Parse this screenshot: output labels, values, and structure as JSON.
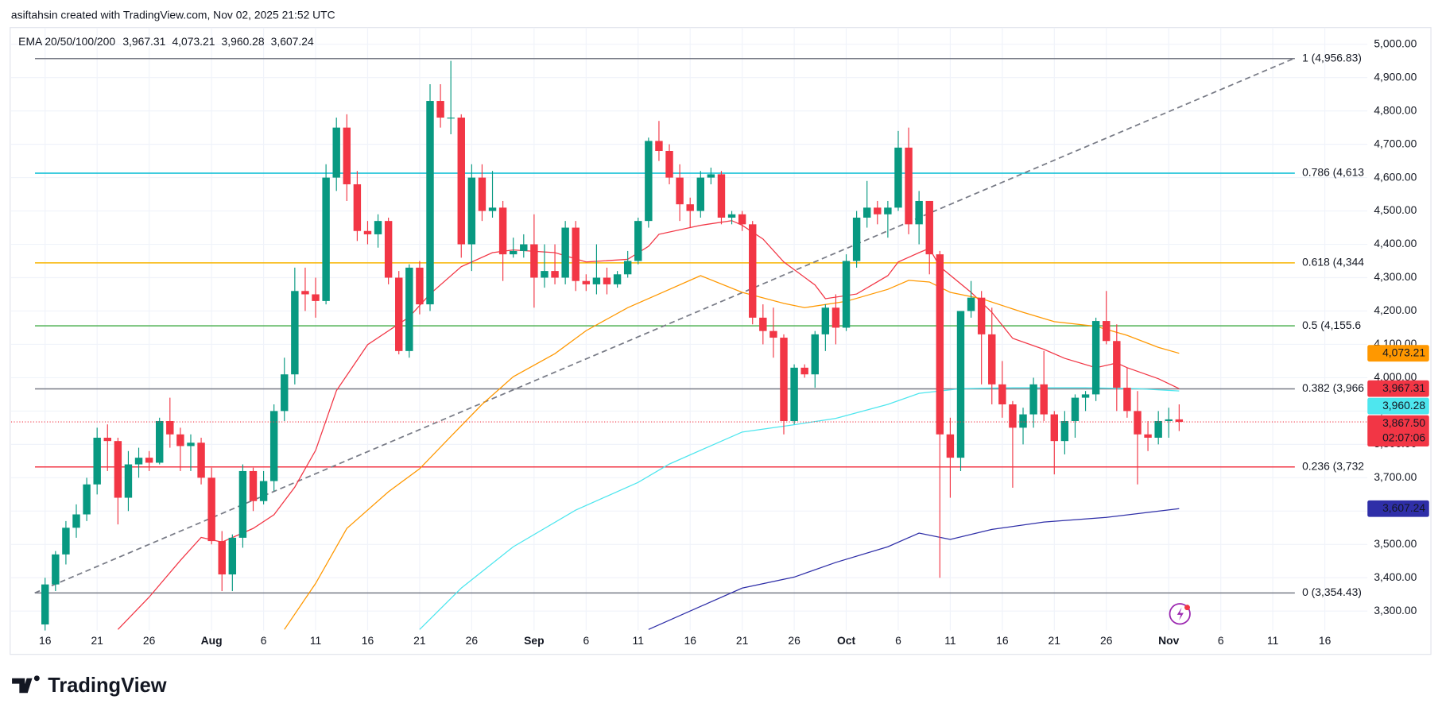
{
  "header": {
    "attribution": "asiftahsin created with TradingView.com, Nov 02, 2025 21:52 UTC",
    "footer_logo": "TradingView"
  },
  "chart_data": {
    "type": "candlestick",
    "indicator": "EMA 20/50/100/200",
    "x": [
      0,
      1,
      2,
      3,
      4,
      5,
      6,
      7,
      8,
      9,
      10,
      11,
      12,
      13,
      14,
      15,
      16,
      17,
      18,
      19,
      20,
      21,
      22,
      23,
      24,
      25,
      26,
      27,
      28,
      29,
      30,
      31,
      32,
      33,
      34,
      35,
      36,
      37,
      38,
      39,
      40,
      41,
      42,
      43,
      44,
      45,
      46,
      47,
      48,
      49,
      50,
      51,
      52,
      53,
      54,
      55,
      56,
      57,
      58,
      59,
      60,
      61,
      62,
      63,
      64,
      65,
      66,
      67,
      68,
      69,
      70,
      71,
      72,
      73,
      74,
      75,
      76,
      77,
      78,
      79,
      80,
      81,
      82,
      83,
      84,
      85,
      86,
      87,
      88,
      89,
      90,
      91,
      92,
      93,
      94,
      95,
      96,
      97,
      98,
      99,
      100,
      101,
      102,
      103,
      104,
      105,
      106,
      107,
      108,
      109
    ],
    "open": [
      3260,
      3380,
      3470,
      3550,
      3590,
      3680,
      3820,
      3810,
      3640,
      3740,
      3760,
      3745,
      3870,
      3830,
      3795,
      3805,
      3700,
      3510,
      3410,
      3520,
      3720,
      3630,
      3690,
      3900,
      4010,
      4260,
      4250,
      4230,
      4600,
      4750,
      4580,
      4440,
      4430,
      4470,
      4300,
      4080,
      4330,
      4220,
      4830,
      4780,
      4780,
      4400,
      4600,
      4500,
      4510,
      4370,
      4380,
      4400,
      4300,
      4320,
      4300,
      4450,
      4290,
      4280,
      4300,
      4280,
      4310,
      4350,
      4470,
      4710,
      4680,
      4600,
      4520,
      4500,
      4600,
      4610,
      4480,
      4490,
      4460,
      4180,
      4140,
      4120,
      3870,
      4030,
      4010,
      4130,
      4210,
      4150,
      4350,
      4480,
      4510,
      4490,
      4510,
      4690,
      4460,
      4530,
      4370,
      3830,
      3760,
      4200,
      4240,
      4130,
      3980,
      3920,
      3850,
      3890,
      3980,
      3890,
      3810,
      3870,
      3940,
      3950,
      4170,
      4110,
      3970,
      3900,
      3830,
      3820,
      3870,
      3875
    ],
    "high": [
      3400,
      3480,
      3570,
      3620,
      3700,
      3850,
      3860,
      3820,
      3780,
      3790,
      3780,
      3880,
      3940,
      3850,
      3830,
      3820,
      3730,
      3540,
      3530,
      3740,
      3730,
      3720,
      3920,
      4060,
      4330,
      4330,
      4300,
      4640,
      4780,
      4790,
      4620,
      4470,
      4490,
      4480,
      4320,
      4340,
      4350,
      4880,
      4880,
      4950,
      4790,
      4640,
      4640,
      4620,
      4530,
      4420,
      4430,
      4490,
      4400,
      4400,
      4470,
      4470,
      4310,
      4400,
      4330,
      4320,
      4380,
      4480,
      4720,
      4770,
      4700,
      4640,
      4540,
      4620,
      4630,
      4620,
      4500,
      4500,
      4470,
      4220,
      4210,
      4130,
      4040,
      4040,
      4140,
      4220,
      4250,
      4370,
      4500,
      4590,
      4530,
      4530,
      4740,
      4750,
      4560,
      4530,
      4380,
      3880,
      4200,
      4290,
      4260,
      4210,
      4050,
      3930,
      3910,
      4000,
      4080,
      3900,
      3900,
      3950,
      3960,
      4180,
      4260,
      4160,
      4030,
      3960,
      3870,
      3900,
      3910,
      3920
    ],
    "low": [
      3230,
      3360,
      3440,
      3520,
      3570,
      3650,
      3720,
      3560,
      3600,
      3700,
      3720,
      3740,
      3790,
      3720,
      3720,
      3680,
      3500,
      3360,
      3360,
      3490,
      3600,
      3620,
      3660,
      3870,
      3980,
      4200,
      4180,
      4220,
      4560,
      4530,
      4410,
      4400,
      4390,
      4280,
      4070,
      4060,
      4190,
      4200,
      4750,
      4730,
      4360,
      4320,
      4470,
      4480,
      4290,
      4360,
      4360,
      4210,
      4270,
      4280,
      4280,
      4260,
      4260,
      4250,
      4250,
      4270,
      4300,
      4340,
      4450,
      4650,
      4580,
      4470,
      4450,
      4480,
      4580,
      4460,
      4460,
      4440,
      4160,
      4100,
      4060,
      3830,
      3860,
      4000,
      3970,
      4080,
      4100,
      4140,
      4330,
      4450,
      4460,
      4420,
      4500,
      4430,
      4400,
      4310,
      3400,
      3640,
      3720,
      4180,
      3980,
      3920,
      3880,
      3670,
      3800,
      3850,
      3870,
      3710,
      3770,
      3820,
      3900,
      3930,
      4100,
      3900,
      3880,
      3680,
      3780,
      3800,
      3820,
      3840
    ],
    "close": [
      3380,
      3470,
      3550,
      3590,
      3680,
      3820,
      3810,
      3640,
      3740,
      3760,
      3745,
      3870,
      3830,
      3795,
      3805,
      3700,
      3510,
      3410,
      3520,
      3720,
      3630,
      3690,
      3900,
      4010,
      4260,
      4250,
      4230,
      4600,
      4750,
      4580,
      4440,
      4430,
      4470,
      4300,
      4080,
      4330,
      4220,
      4830,
      4780,
      4780,
      4400,
      4600,
      4500,
      4510,
      4370,
      4380,
      4400,
      4300,
      4320,
      4300,
      4450,
      4290,
      4280,
      4300,
      4280,
      4310,
      4350,
      4470,
      4710,
      4680,
      4600,
      4520,
      4500,
      4600,
      4610,
      4480,
      4490,
      4460,
      4180,
      4140,
      4120,
      3870,
      4030,
      4010,
      4130,
      4210,
      4150,
      4350,
      4480,
      4510,
      4490,
      4510,
      4690,
      4460,
      4530,
      4370,
      3830,
      3760,
      4200,
      4240,
      4130,
      3980,
      3920,
      3850,
      3890,
      3980,
      3890,
      3810,
      3870,
      3940,
      3950,
      4170,
      4110,
      3970,
      3900,
      3830,
      3820,
      3870,
      3875,
      3867.5
    ],
    "up_color": "#089981",
    "down_color": "#f23645",
    "xlim": [
      -3.27,
      127.1
    ],
    "xticks": [
      {
        "value": 0,
        "label": "16"
      },
      {
        "value": 5,
        "label": "21"
      },
      {
        "value": 10,
        "label": "26"
      },
      {
        "value": 16,
        "label": "Aug"
      },
      {
        "value": 21,
        "label": "6"
      },
      {
        "value": 26,
        "label": "11"
      },
      {
        "value": 31,
        "label": "16"
      },
      {
        "value": 36,
        "label": "21"
      },
      {
        "value": 41,
        "label": "26"
      },
      {
        "value": 47,
        "label": "Sep"
      },
      {
        "value": 52,
        "label": "6"
      },
      {
        "value": 57,
        "label": "11"
      },
      {
        "value": 62,
        "label": "16"
      },
      {
        "value": 67,
        "label": "21"
      },
      {
        "value": 72,
        "label": "26"
      },
      {
        "value": 77,
        "label": "Oct"
      },
      {
        "value": 82,
        "label": "6"
      },
      {
        "value": 87,
        "label": "11"
      },
      {
        "value": 92,
        "label": "16"
      },
      {
        "value": 97,
        "label": "21"
      },
      {
        "value": 102,
        "label": "26"
      },
      {
        "value": 108,
        "label": "Nov"
      },
      {
        "value": 113,
        "label": "6"
      },
      {
        "value": 118,
        "label": "11"
      },
      {
        "value": 123,
        "label": "16"
      }
    ],
    "ylim": [
      3242,
      5050
    ],
    "yticks": [
      {
        "value": 3300,
        "label": "3,300.00"
      },
      {
        "value": 3400,
        "label": "3,400.00"
      },
      {
        "value": 3500,
        "label": "3,500.00"
      },
      {
        "value": 3600,
        "label": "3,600.00"
      },
      {
        "value": 3700,
        "label": "3,700.00"
      },
      {
        "value": 3800,
        "label": "3,800.00"
      },
      {
        "value": 3900,
        "label": "3,900.00"
      },
      {
        "value": 4000,
        "label": "4,000.00"
      },
      {
        "value": 4100,
        "label": "4,100.00"
      },
      {
        "value": 4200,
        "label": "4,200.00"
      },
      {
        "value": 4300,
        "label": "4,300.00"
      },
      {
        "value": 4400,
        "label": "4,400.00"
      },
      {
        "value": 4500,
        "label": "4,500.00"
      },
      {
        "value": 4600,
        "label": "4,600.00"
      },
      {
        "value": 4700,
        "label": "4,700.00"
      },
      {
        "value": 4800,
        "label": "4,800.00"
      },
      {
        "value": 4900,
        "label": "4,900.00"
      },
      {
        "value": 5000,
        "label": "5,000.00"
      }
    ],
    "grid": true,
    "series": [
      {
        "color": "#f23645",
        "x": [
          7,
          10,
          13,
          15,
          17,
          20,
          22,
          24,
          26,
          28,
          31,
          35,
          37,
          40,
          43,
          45,
          49,
          52,
          56,
          58,
          59,
          63,
          66,
          67,
          69,
          71,
          74,
          75,
          78,
          81,
          82,
          84,
          85,
          86,
          89,
          91,
          93,
          96,
          98,
          101,
          103,
          104,
          107,
          109
        ],
        "values": [
          3245,
          3342,
          3452,
          3521,
          3507,
          3548,
          3589,
          3672,
          3782,
          3961,
          4099,
          4182,
          4251,
          4333,
          4375,
          4383,
          4375,
          4347,
          4355,
          4394,
          4430,
          4457,
          4471,
          4457,
          4416,
          4347,
          4278,
          4237,
          4251,
          4306,
          4347,
          4375,
          4388,
          4333,
          4256,
          4196,
          4118,
          4085,
          4058,
          4030,
          4044,
          4030,
          3997,
          3967.31
        ],
        "last": {
          "value": 3967.31,
          "label": "3,967.31"
        }
      },
      {
        "color": "#ff9800",
        "x": [
          23,
          26,
          29,
          33,
          36,
          39,
          42,
          45,
          49,
          52,
          56,
          59,
          63,
          67,
          71,
          73,
          77,
          81,
          83,
          85,
          87,
          90,
          94,
          97,
          101,
          104,
          107,
          109
        ],
        "values": [
          3245,
          3383,
          3548,
          3658,
          3727,
          3824,
          3920,
          4003,
          4072,
          4141,
          4210,
          4251,
          4306,
          4256,
          4223,
          4210,
          4229,
          4265,
          4292,
          4287,
          4256,
          4237,
          4196,
          4168,
          4154,
          4127,
          4091,
          4073.21
        ],
        "last": {
          "value": 4073.21,
          "label": "4,073.21"
        }
      },
      {
        "color": "#4ee6ee",
        "x": [
          36,
          40,
          45,
          51,
          57,
          60,
          64,
          67,
          72,
          76,
          81,
          84,
          88,
          93,
          100,
          105,
          109
        ],
        "values": [
          3245,
          3369,
          3493,
          3603,
          3686,
          3741,
          3796,
          3837,
          3859,
          3878,
          3920,
          3953,
          3967,
          3970,
          3970,
          3967,
          3960.28
        ],
        "last": {
          "value": 3960.28,
          "label": "3,960.28"
        }
      },
      {
        "color": "#2f2fa8",
        "x": [
          58,
          63,
          67,
          72,
          76,
          81,
          84,
          87,
          91,
          96,
          102,
          109
        ],
        "values": [
          3245,
          3314,
          3369,
          3402,
          3446,
          3493,
          3534,
          3515,
          3545,
          3567,
          3581,
          3607.24
        ],
        "last": {
          "value": 3607.24,
          "label": "3,607.24"
        }
      }
    ],
    "fib_levels": [
      {
        "value": 4956.83,
        "label": "1 (4,956.83)",
        "color": "#787b86"
      },
      {
        "value": 4613.4,
        "label": "0.786 (4,613",
        "color": "#00bcd4"
      },
      {
        "value": 4344.4,
        "label": "0.618 (4,344",
        "color": "#f7b500"
      },
      {
        "value": 4155.6,
        "label": "0.5 (4,155.6",
        "color": "#4caf50"
      },
      {
        "value": 3966.46,
        "label": "0.382 (3,966",
        "color": "#787b86"
      },
      {
        "value": 3732.4,
        "label": "0.236 (3,732",
        "color": "#f23645"
      },
      {
        "value": 3354.43,
        "label": "0 (3,354.43)",
        "color": "#787b86"
      }
    ],
    "trend_line": {
      "x": [
        -1,
        120
      ],
      "values": [
        3354.43,
        4956.83
      ]
    },
    "last_price": {
      "value": 3867.5,
      "label": "3,867.50",
      "countdown": "02:07:06",
      "color": "#f23645"
    }
  }
}
